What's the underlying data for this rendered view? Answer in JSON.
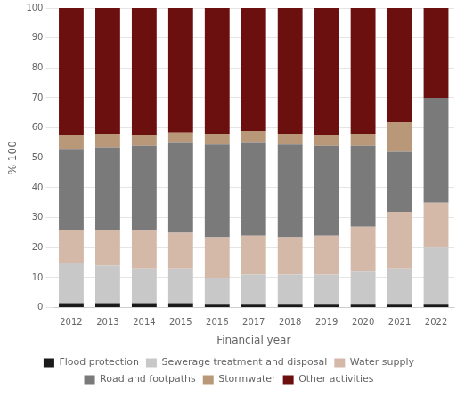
{
  "chart_data": {
    "type": "bar",
    "stacked": true,
    "categories": [
      2012,
      2013,
      2014,
      2015,
      2016,
      2017,
      2018,
      2019,
      2020,
      2021,
      2022
    ],
    "series": [
      {
        "name": "Flood protection",
        "color": "#1a1a1a",
        "values": [
          1.5,
          1.5,
          1.5,
          1.5,
          1.0,
          1.0,
          1.0,
          1.0,
          1.0,
          1.0,
          1.0
        ]
      },
      {
        "name": "Sewerage treatment and disposal",
        "color": "#c8c8c8",
        "values": [
          13.5,
          12.5,
          11.5,
          11.5,
          9.0,
          10.0,
          10.0,
          10.0,
          11.0,
          12.0,
          19.0
        ]
      },
      {
        "name": "Water supply",
        "color": "#d4b8a8",
        "values": [
          11.0,
          12.0,
          13.0,
          12.0,
          13.5,
          13.0,
          12.5,
          13.0,
          15.0,
          19.0,
          15.0
        ]
      },
      {
        "name": "Road and footpaths",
        "color": "#7a7a7a",
        "values": [
          27.0,
          27.5,
          28.0,
          30.0,
          31.0,
          31.0,
          31.0,
          30.0,
          27.0,
          20.0,
          35.0
        ]
      },
      {
        "name": "Stormwater",
        "color": "#b89878",
        "values": [
          4.5,
          4.5,
          3.5,
          3.5,
          3.5,
          4.0,
          3.5,
          3.5,
          4.0,
          10.0,
          0.0
        ]
      },
      {
        "name": "Other activities",
        "color": "#6b0f0f",
        "values": [
          42.5,
          42.0,
          42.5,
          41.5,
          42.0,
          41.0,
          42.0,
          42.5,
          42.0,
          38.0,
          30.0
        ]
      }
    ],
    "xlabel": "Financial year",
    "ylabel": "% 100",
    "ylim": [
      0,
      100
    ],
    "yticks": [
      0,
      10,
      20,
      30,
      40,
      50,
      60,
      70,
      80,
      90,
      100
    ],
    "grid": true,
    "legend": "bottom"
  }
}
